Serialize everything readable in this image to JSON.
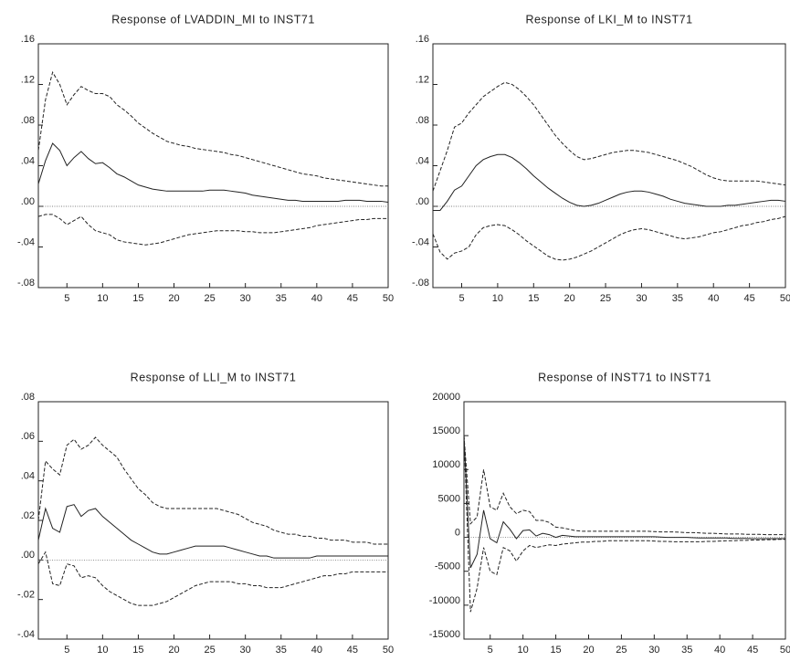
{
  "chart_data": [
    {
      "type": "line",
      "title": "Response of LVADDIN_MI to INST71",
      "x": [
        1,
        2,
        3,
        4,
        5,
        6,
        7,
        8,
        9,
        10,
        11,
        12,
        13,
        14,
        15,
        16,
        17,
        18,
        19,
        20,
        21,
        22,
        23,
        24,
        25,
        26,
        27,
        28,
        29,
        30,
        31,
        32,
        33,
        34,
        35,
        36,
        37,
        38,
        39,
        40,
        41,
        42,
        43,
        44,
        45,
        46,
        47,
        48,
        49,
        50
      ],
      "xlim": [
        1,
        50
      ],
      "xticks": [
        5,
        10,
        15,
        20,
        25,
        30,
        35,
        40,
        45,
        50
      ],
      "ylim": [
        -0.08,
        0.16
      ],
      "yticks": [
        {
          "value": 0.16,
          "label": ".16"
        },
        {
          "value": 0.12,
          "label": ".12"
        },
        {
          "value": 0.08,
          "label": ".08"
        },
        {
          "value": 0.04,
          "label": ".04"
        },
        {
          "value": 0,
          "label": ".00"
        },
        {
          "value": -0.04,
          "label": "-.04"
        },
        {
          "value": -0.08,
          "label": "-.08"
        }
      ],
      "zero_line": true,
      "series": [
        {
          "color": "#222222",
          "style": "solid",
          "values": [
            0.022,
            0.045,
            0.062,
            0.055,
            0.04,
            0.048,
            0.054,
            0.047,
            0.042,
            0.043,
            0.038,
            0.032,
            0.029,
            0.025,
            0.021,
            0.019,
            0.017,
            0.016,
            0.015,
            0.015,
            0.015,
            0.015,
            0.015,
            0.015,
            0.016,
            0.016,
            0.016,
            0.015,
            0.014,
            0.013,
            0.011,
            0.01,
            0.009,
            0.008,
            0.007,
            0.006,
            0.006,
            0.005,
            0.005,
            0.005,
            0.005,
            0.005,
            0.005,
            0.006,
            0.006,
            0.006,
            0.005,
            0.005,
            0.005,
            0.004
          ]
        },
        {
          "color": "#222222",
          "style": "dashed",
          "values": [
            0.055,
            0.105,
            0.132,
            0.12,
            0.1,
            0.11,
            0.118,
            0.114,
            0.111,
            0.111,
            0.108,
            0.1,
            0.095,
            0.089,
            0.082,
            0.077,
            0.072,
            0.068,
            0.064,
            0.062,
            0.06,
            0.059,
            0.057,
            0.056,
            0.055,
            0.054,
            0.053,
            0.051,
            0.05,
            0.048,
            0.046,
            0.044,
            0.042,
            0.04,
            0.038,
            0.036,
            0.034,
            0.032,
            0.031,
            0.03,
            0.028,
            0.027,
            0.026,
            0.025,
            0.024,
            0.023,
            0.022,
            0.021,
            0.02,
            0.02
          ]
        },
        {
          "color": "#222222",
          "style": "dashed",
          "values": [
            -0.01,
            -0.008,
            -0.008,
            -0.012,
            -0.018,
            -0.014,
            -0.01,
            -0.018,
            -0.024,
            -0.026,
            -0.028,
            -0.033,
            -0.035,
            -0.036,
            -0.037,
            -0.038,
            -0.037,
            -0.036,
            -0.034,
            -0.032,
            -0.03,
            -0.028,
            -0.027,
            -0.026,
            -0.025,
            -0.024,
            -0.024,
            -0.024,
            -0.024,
            -0.025,
            -0.025,
            -0.026,
            -0.026,
            -0.026,
            -0.025,
            -0.024,
            -0.023,
            -0.022,
            -0.021,
            -0.019,
            -0.018,
            -0.017,
            -0.016,
            -0.015,
            -0.014,
            -0.013,
            -0.013,
            -0.012,
            -0.012,
            -0.012
          ]
        }
      ]
    },
    {
      "type": "line",
      "title": "Response of LKI_M to INST71",
      "x": [
        1,
        2,
        3,
        4,
        5,
        6,
        7,
        8,
        9,
        10,
        11,
        12,
        13,
        14,
        15,
        16,
        17,
        18,
        19,
        20,
        21,
        22,
        23,
        24,
        25,
        26,
        27,
        28,
        29,
        30,
        31,
        32,
        33,
        34,
        35,
        36,
        37,
        38,
        39,
        40,
        41,
        42,
        43,
        44,
        45,
        46,
        47,
        48,
        49,
        50
      ],
      "xlim": [
        1,
        50
      ],
      "xticks": [
        5,
        10,
        15,
        20,
        25,
        30,
        35,
        40,
        45,
        50
      ],
      "ylim": [
        -0.08,
        0.16
      ],
      "yticks": [
        {
          "value": 0.16,
          "label": ".16"
        },
        {
          "value": 0.12,
          "label": ".12"
        },
        {
          "value": 0.08,
          "label": ".08"
        },
        {
          "value": 0.04,
          "label": ".04"
        },
        {
          "value": 0,
          "label": ".00"
        },
        {
          "value": -0.04,
          "label": "-.04"
        },
        {
          "value": -0.08,
          "label": "-.08"
        }
      ],
      "zero_line": true,
      "series": [
        {
          "color": "#222222",
          "style": "solid",
          "values": [
            -0.004,
            -0.004,
            0.005,
            0.016,
            0.02,
            0.03,
            0.04,
            0.046,
            0.049,
            0.051,
            0.051,
            0.048,
            0.043,
            0.037,
            0.03,
            0.024,
            0.018,
            0.013,
            0.008,
            0.004,
            0.001,
            0.0,
            0.001,
            0.003,
            0.006,
            0.009,
            0.012,
            0.014,
            0.015,
            0.015,
            0.014,
            0.012,
            0.01,
            0.007,
            0.005,
            0.003,
            0.002,
            0.001,
            0.0,
            0.0,
            0.0,
            0.001,
            0.001,
            0.002,
            0.003,
            0.004,
            0.005,
            0.006,
            0.006,
            0.005
          ]
        },
        {
          "color": "#222222",
          "style": "dashed",
          "values": [
            0.015,
            0.035,
            0.055,
            0.078,
            0.082,
            0.092,
            0.1,
            0.108,
            0.113,
            0.118,
            0.122,
            0.12,
            0.115,
            0.108,
            0.1,
            0.09,
            0.08,
            0.07,
            0.062,
            0.055,
            0.049,
            0.046,
            0.047,
            0.049,
            0.051,
            0.053,
            0.054,
            0.055,
            0.055,
            0.054,
            0.053,
            0.051,
            0.049,
            0.047,
            0.045,
            0.042,
            0.039,
            0.035,
            0.031,
            0.028,
            0.026,
            0.025,
            0.025,
            0.025,
            0.025,
            0.025,
            0.024,
            0.023,
            0.022,
            0.021
          ]
        },
        {
          "color": "#222222",
          "style": "dashed",
          "values": [
            -0.027,
            -0.045,
            -0.052,
            -0.046,
            -0.044,
            -0.04,
            -0.028,
            -0.021,
            -0.019,
            -0.018,
            -0.019,
            -0.023,
            -0.028,
            -0.034,
            -0.039,
            -0.044,
            -0.049,
            -0.052,
            -0.053,
            -0.052,
            -0.05,
            -0.047,
            -0.044,
            -0.04,
            -0.036,
            -0.032,
            -0.028,
            -0.025,
            -0.023,
            -0.022,
            -0.023,
            -0.025,
            -0.027,
            -0.029,
            -0.031,
            -0.032,
            -0.031,
            -0.03,
            -0.028,
            -0.026,
            -0.025,
            -0.023,
            -0.021,
            -0.019,
            -0.018,
            -0.016,
            -0.015,
            -0.013,
            -0.012,
            -0.01
          ]
        }
      ]
    },
    {
      "type": "line",
      "title": "Response of LLI_M to INST71",
      "x": [
        1,
        2,
        3,
        4,
        5,
        6,
        7,
        8,
        9,
        10,
        11,
        12,
        13,
        14,
        15,
        16,
        17,
        18,
        19,
        20,
        21,
        22,
        23,
        24,
        25,
        26,
        27,
        28,
        29,
        30,
        31,
        32,
        33,
        34,
        35,
        36,
        37,
        38,
        39,
        40,
        41,
        42,
        43,
        44,
        45,
        46,
        47,
        48,
        49,
        50
      ],
      "xlim": [
        1,
        50
      ],
      "xticks": [
        5,
        10,
        15,
        20,
        25,
        30,
        35,
        40,
        45,
        50
      ],
      "ylim": [
        -0.04,
        0.08
      ],
      "yticks": [
        {
          "value": 0.08,
          "label": ".08"
        },
        {
          "value": 0.06,
          "label": ".06"
        },
        {
          "value": 0.04,
          "label": ".04"
        },
        {
          "value": 0.02,
          "label": ".02"
        },
        {
          "value": 0,
          "label": ".00"
        },
        {
          "value": -0.02,
          "label": "-.02"
        },
        {
          "value": -0.04,
          "label": "-.04"
        }
      ],
      "zero_line": true,
      "series": [
        {
          "color": "#222222",
          "style": "solid",
          "values": [
            0.01,
            0.026,
            0.016,
            0.014,
            0.027,
            0.028,
            0.022,
            0.025,
            0.026,
            0.022,
            0.019,
            0.016,
            0.013,
            0.01,
            0.008,
            0.006,
            0.004,
            0.003,
            0.003,
            0.004,
            0.005,
            0.006,
            0.007,
            0.007,
            0.007,
            0.007,
            0.007,
            0.006,
            0.005,
            0.004,
            0.003,
            0.002,
            0.002,
            0.001,
            0.001,
            0.001,
            0.001,
            0.001,
            0.001,
            0.002,
            0.002,
            0.002,
            0.002,
            0.002,
            0.002,
            0.002,
            0.002,
            0.002,
            0.002,
            0.002
          ]
        },
        {
          "color": "#222222",
          "style": "dashed",
          "values": [
            0.02,
            0.05,
            0.046,
            0.043,
            0.058,
            0.061,
            0.056,
            0.058,
            0.062,
            0.058,
            0.055,
            0.052,
            0.046,
            0.041,
            0.036,
            0.033,
            0.029,
            0.027,
            0.026,
            0.026,
            0.026,
            0.026,
            0.026,
            0.026,
            0.026,
            0.026,
            0.025,
            0.024,
            0.023,
            0.021,
            0.019,
            0.018,
            0.017,
            0.015,
            0.014,
            0.013,
            0.013,
            0.012,
            0.012,
            0.011,
            0.011,
            0.01,
            0.01,
            0.01,
            0.009,
            0.009,
            0.009,
            0.008,
            0.008,
            0.008
          ]
        },
        {
          "color": "#222222",
          "style": "dashed",
          "values": [
            -0.002,
            0.004,
            -0.012,
            -0.013,
            -0.002,
            -0.003,
            -0.009,
            -0.008,
            -0.009,
            -0.013,
            -0.016,
            -0.018,
            -0.02,
            -0.022,
            -0.023,
            -0.023,
            -0.023,
            -0.022,
            -0.021,
            -0.019,
            -0.017,
            -0.015,
            -0.013,
            -0.012,
            -0.011,
            -0.011,
            -0.011,
            -0.011,
            -0.012,
            -0.012,
            -0.013,
            -0.013,
            -0.014,
            -0.014,
            -0.014,
            -0.013,
            -0.012,
            -0.011,
            -0.01,
            -0.009,
            -0.008,
            -0.008,
            -0.007,
            -0.007,
            -0.006,
            -0.006,
            -0.006,
            -0.006,
            -0.006,
            -0.006
          ]
        }
      ]
    },
    {
      "type": "line",
      "title": "Response of INST71 to INST71",
      "x": [
        1,
        2,
        3,
        4,
        5,
        6,
        7,
        8,
        9,
        10,
        11,
        12,
        13,
        14,
        15,
        16,
        17,
        18,
        19,
        20,
        21,
        22,
        23,
        24,
        25,
        26,
        27,
        28,
        29,
        30,
        31,
        32,
        33,
        34,
        35,
        36,
        37,
        38,
        39,
        40,
        41,
        42,
        43,
        44,
        45,
        46,
        47,
        48,
        49,
        50
      ],
      "xlim": [
        1,
        50
      ],
      "xticks": [
        5,
        10,
        15,
        20,
        25,
        30,
        35,
        40,
        45,
        50
      ],
      "ylim": [
        -15000,
        20000
      ],
      "yticks": [
        20000,
        15000,
        10000,
        5000,
        0,
        -5000,
        -10000,
        -15000
      ],
      "zero_line": true,
      "series": [
        {
          "color": "#222222",
          "style": "solid",
          "values": [
            15000,
            -4500,
            -2500,
            4000,
            -200,
            -800,
            2300,
            1200,
            -200,
            1000,
            1100,
            200,
            600,
            400,
            0,
            300,
            200,
            100,
            100,
            100,
            100,
            100,
            100,
            100,
            100,
            100,
            100,
            100,
            100,
            100,
            50,
            0,
            0,
            0,
            0,
            -50,
            -100,
            -100,
            -100,
            -100,
            -100,
            -150,
            -150,
            -150,
            -200,
            -200,
            -200,
            -200,
            -200,
            -200
          ]
        },
        {
          "color": "#222222",
          "style": "dashed",
          "values": [
            15000,
            2000,
            3000,
            10000,
            4500,
            4000,
            6500,
            4500,
            3500,
            4000,
            3800,
            2500,
            2500,
            2200,
            1500,
            1400,
            1200,
            1000,
            900,
            900,
            900,
            900,
            900,
            900,
            900,
            900,
            900,
            900,
            900,
            850,
            800,
            800,
            800,
            750,
            700,
            700,
            650,
            600,
            600,
            550,
            500,
            500,
            500,
            450,
            450,
            450,
            400,
            400,
            400,
            400
          ]
        },
        {
          "color": "#222222",
          "style": "dashed",
          "values": [
            15000,
            -11000,
            -7500,
            -1500,
            -5000,
            -5500,
            -1500,
            -2000,
            -3500,
            -2000,
            -1200,
            -1500,
            -1300,
            -1100,
            -1200,
            -1000,
            -900,
            -800,
            -700,
            -700,
            -600,
            -600,
            -500,
            -500,
            -500,
            -500,
            -500,
            -500,
            -500,
            -550,
            -600,
            -600,
            -650,
            -650,
            -650,
            -650,
            -650,
            -600,
            -600,
            -550,
            -500,
            -500,
            -450,
            -450,
            -400,
            -400,
            -350,
            -350,
            -300,
            -300
          ]
        }
      ]
    }
  ]
}
